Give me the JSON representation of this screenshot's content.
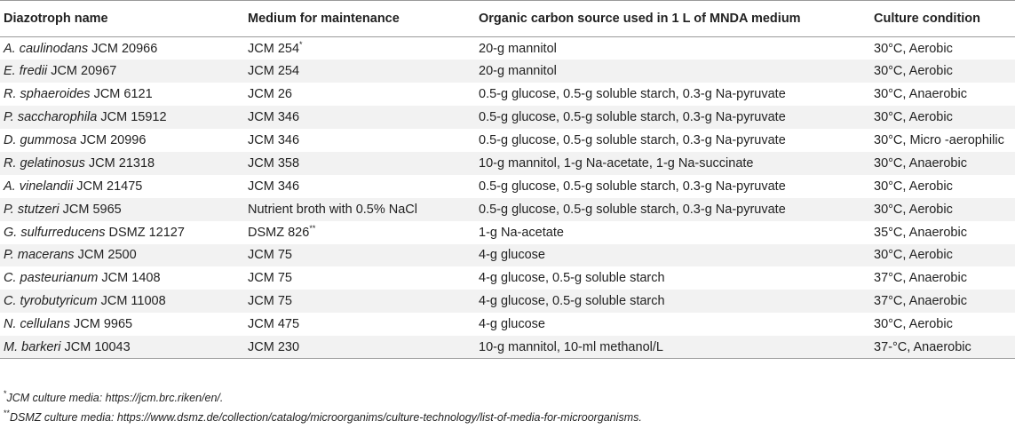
{
  "headers": [
    "Diazotroph name",
    "Medium for maintenance",
    "Organic carbon source used in 1 L of MNDA medium",
    "Culture condition"
  ],
  "rows": [
    {
      "species": "A. caulinodans",
      "strain": "JCM 20966",
      "medium": "JCM 254",
      "medium_mark": "*",
      "carbon": "20-g mannitol",
      "condition": "30°C, Aerobic"
    },
    {
      "species": "E. fredii",
      "strain": "JCM 20967",
      "medium": "JCM 254",
      "medium_mark": "",
      "carbon": "20-g mannitol",
      "condition": "30°C, Aerobic"
    },
    {
      "species": "R. sphaeroides",
      "strain": "JCM 6121",
      "medium": "JCM 26",
      "medium_mark": "",
      "carbon": "0.5-g glucose, 0.5-g soluble starch, 0.3-g Na-pyruvate",
      "condition": "30°C, Anaerobic"
    },
    {
      "species": "P. saccharophila",
      "strain": "JCM 15912",
      "medium": "JCM 346",
      "medium_mark": "",
      "carbon": "0.5-g glucose, 0.5-g soluble starch, 0.3-g Na-pyruvate",
      "condition": "30°C, Aerobic"
    },
    {
      "species": "D. gummosa",
      "strain": "JCM 20996",
      "medium": "JCM 346",
      "medium_mark": "",
      "carbon": "0.5-g glucose, 0.5-g soluble starch, 0.3-g Na-pyruvate",
      "condition": "30°C, Micro -aerophilic"
    },
    {
      "species": "R. gelatinosus",
      "strain": "JCM 21318",
      "medium": "JCM 358",
      "medium_mark": "",
      "carbon": "10-g mannitol, 1-g Na-acetate, 1-g Na-succinate",
      "condition": "30°C, Anaerobic"
    },
    {
      "species": "A. vinelandii",
      "strain": "JCM 21475",
      "medium": "JCM 346",
      "medium_mark": "",
      "carbon": "0.5-g glucose, 0.5-g soluble starch, 0.3-g Na-pyruvate",
      "condition": "30°C, Aerobic"
    },
    {
      "species": "P. stutzeri",
      "strain": "JCM 5965",
      "medium": "Nutrient broth with 0.5% NaCl",
      "medium_mark": "",
      "carbon": "0.5-g glucose, 0.5-g soluble starch, 0.3-g Na-pyruvate",
      "condition": "30°C, Aerobic"
    },
    {
      "species": "G. sulfurreducens",
      "strain": "DSMZ 12127",
      "medium": "DSMZ 826",
      "medium_mark": "**",
      "carbon": "1-g Na-acetate",
      "condition": "35°C, Anaerobic"
    },
    {
      "species": "P. macerans",
      "strain": "JCM 2500",
      "medium": "JCM 75",
      "medium_mark": "",
      "carbon": "4-g glucose",
      "condition": "30°C, Aerobic"
    },
    {
      "species": "C. pasteurianum",
      "strain": "JCM 1408",
      "medium": "JCM 75",
      "medium_mark": "",
      "carbon": "4-g glucose, 0.5-g soluble starch",
      "condition": "37°C, Anaerobic"
    },
    {
      "species": "C. tyrobutyricum",
      "strain": "JCM 11008",
      "medium": "JCM 75",
      "medium_mark": "",
      "carbon": "4-g glucose, 0.5-g soluble starch",
      "condition": "37°C, Anaerobic"
    },
    {
      "species": "N. cellulans",
      "strain": "JCM 9965",
      "medium": "JCM 475",
      "medium_mark": "",
      "carbon": "4-g glucose",
      "condition": "30°C, Aerobic"
    },
    {
      "species": "M. barkeri",
      "strain": "JCM 10043",
      "medium": "JCM 230",
      "medium_mark": "",
      "carbon": "10-g mannitol, 10-ml methanol/L",
      "condition": "37-°C, Anaerobic"
    }
  ],
  "footnotes": [
    {
      "mark": "*",
      "text": "JCM culture media: https://jcm.brc.riken/en/."
    },
    {
      "mark": "**",
      "text": "DSMZ culture media: https://www.dsmz.de/collection/catalog/microorganims/culture-technology/list-of-media-for-microorganisms."
    }
  ]
}
